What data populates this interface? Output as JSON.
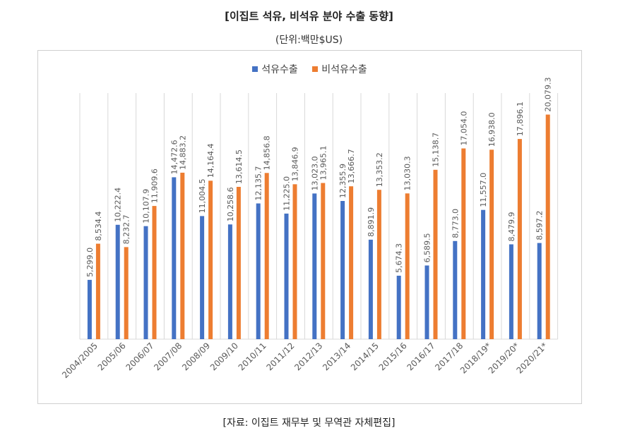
{
  "title": "[이집트 석유, 비석유 분야 수출 동향]",
  "subtitle": "(단위:백만$US)",
  "source": "[자료: 이집트 재무부 및 무역관 자체편집]",
  "colors": {
    "series1": "#4472c4",
    "series2": "#ed7d31",
    "grid": "#d9d9d9",
    "label": "#595959"
  },
  "chart_data": {
    "type": "bar",
    "title": "[이집트 석유, 비석유 분야 수출 동향]",
    "subtitle": "(단위:백만$US)",
    "legend_position": "top",
    "grid": "vertical",
    "ylim": [
      0,
      22000
    ],
    "categories": [
      "2004/2005",
      "2005/06",
      "2006/07",
      "2007/08",
      "2008/09",
      "2009/10",
      "2010/11",
      "2011/12",
      "2012/13",
      "2013/14",
      "2014/15",
      "2015/16",
      "2016/17",
      "2017/18",
      "2018/19*",
      "2019/20*",
      "2020/21*"
    ],
    "series": [
      {
        "name": "석유수출",
        "values": [
          5299.0,
          10222.4,
          10107.9,
          14472.6,
          11004.5,
          10258.6,
          12135.7,
          11225.0,
          13023.0,
          12355.9,
          8891.9,
          5674.3,
          6589.5,
          8773.0,
          11557.0,
          8479.9,
          8597.2
        ],
        "labels": [
          "5,299.0",
          "10,222.4",
          "10,107.9",
          "14,472.6",
          "11,004.5",
          "10,258.6",
          "12,135.7",
          "11,225.0",
          "13,023.0",
          "12,355.9",
          "8,891.9",
          "5,674.3",
          "6,589.5",
          "8,773.0",
          "11,557.0",
          "8,479.9",
          "8,597.2"
        ]
      },
      {
        "name": "비석유수출",
        "values": [
          8534.4,
          8232.7,
          11909.6,
          14883.2,
          14164.4,
          13614.5,
          14856.8,
          13846.9,
          13965.1,
          13666.7,
          13353.2,
          13030.3,
          15138.7,
          17054.0,
          16938.0,
          17896.1,
          20079.3
        ],
        "labels": [
          "8,534.4",
          "8,232.7",
          "11,909.6",
          "14,883.2",
          "14,164.4",
          "13,614.5",
          "14,856.8",
          "13,846.9",
          "13,965.1",
          "13,666.7",
          "13,353.2",
          "13,030.3",
          "15,138.7",
          "17,054.0",
          "16,938.0",
          "17,896.1",
          "20,079.3"
        ]
      }
    ]
  }
}
